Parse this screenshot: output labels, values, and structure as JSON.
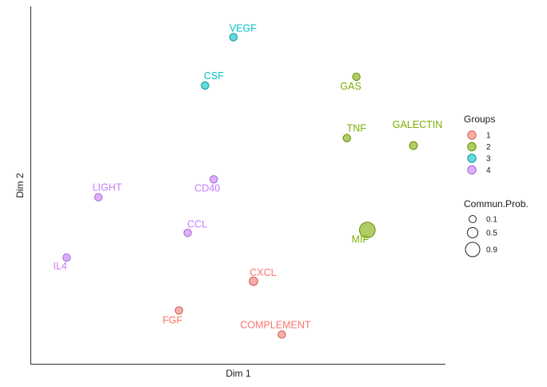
{
  "chart_data": {
    "type": "scatter",
    "title": "",
    "xlabel": "Dim 1",
    "ylabel": "Dim 2",
    "xlim": [
      0,
      100
    ],
    "ylim": [
      0,
      100
    ],
    "show_axis_ticks": false,
    "grid": false,
    "groups_legend": {
      "title": "Groups",
      "position": "right",
      "entries": [
        {
          "label": "1",
          "color": "#F8766D"
        },
        {
          "label": "2",
          "color": "#7CAE00"
        },
        {
          "label": "3",
          "color": "#00BFC4"
        },
        {
          "label": "4",
          "color": "#C77CFF"
        }
      ]
    },
    "size_legend": {
      "title": "Commun.Prob.",
      "position": "right",
      "entries": [
        {
          "label": "0.1",
          "value": 0.1
        },
        {
          "label": "0.5",
          "value": 0.5
        },
        {
          "label": "0.9",
          "value": 0.9
        }
      ]
    },
    "points": [
      {
        "label": "VEGF",
        "group": "3",
        "x": 48.6,
        "y": 95.7,
        "prob": 0.05
      },
      {
        "label": "GAS",
        "group": "2",
        "x": 81.1,
        "y": 83.5,
        "prob": 0.05
      },
      {
        "label": "CSF",
        "group": "3",
        "x": 41.1,
        "y": 80.8,
        "prob": 0.05
      },
      {
        "label": "TNF",
        "group": "2",
        "x": 78.6,
        "y": 64.6,
        "prob": 0.05
      },
      {
        "label": "GALECTIN",
        "group": "2",
        "x": 96.2,
        "y": 62.3,
        "prob": 0.07
      },
      {
        "label": "CD40",
        "group": "4",
        "x": 43.4,
        "y": 51.9,
        "prob": 0.05
      },
      {
        "label": "LIGHT",
        "group": "4",
        "x": 12.9,
        "y": 46.4,
        "prob": 0.05
      },
      {
        "label": "MIF",
        "group": "2",
        "x": 84.0,
        "y": 36.3,
        "prob": 1.0
      },
      {
        "label": "CCL",
        "group": "4",
        "x": 36.5,
        "y": 35.4,
        "prob": 0.05
      },
      {
        "label": "IL4",
        "group": "4",
        "x": 4.5,
        "y": 27.8,
        "prob": 0.05
      },
      {
        "label": "CXCL",
        "group": "1",
        "x": 53.9,
        "y": 20.5,
        "prob": 0.1
      },
      {
        "label": "FGF",
        "group": "1",
        "x": 34.2,
        "y": 11.5,
        "prob": 0.05
      },
      {
        "label": "COMPLEMENT",
        "group": "1",
        "x": 61.4,
        "y": 4.1,
        "prob": 0.05
      }
    ]
  }
}
